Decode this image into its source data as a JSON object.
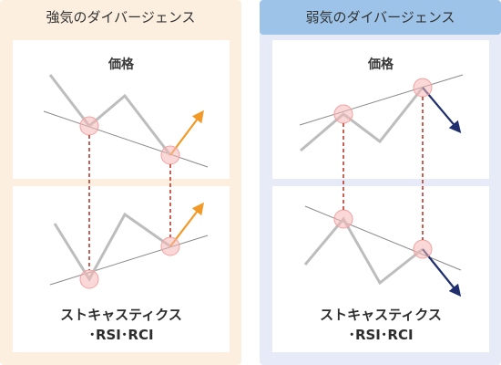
{
  "colors": {
    "bullish_bg": "#fdefe0",
    "bearish_bg": "#e6ebf7",
    "bearish_header": "#9dc4e8",
    "inner_panel": "#ffffff",
    "price_line": "#bdbdbd",
    "trend_line": "#8a8a8a",
    "highlight": "#f6b8b8",
    "dashed": "#c0392b",
    "orange_arrow": "#f29a27",
    "navy_arrow": "#1f2f6d"
  },
  "bullish": {
    "title": "強気のダイバージェンス",
    "price_label": "価格",
    "indicator_line1": "ストキャスティクス",
    "indicator_line2": "･RSI･RCI"
  },
  "bearish": {
    "title": "弱気のダイバージェンス",
    "price_label": "価格",
    "indicator_line1": "ストキャスティクス",
    "indicator_line2": "･RSI･RCI"
  }
}
